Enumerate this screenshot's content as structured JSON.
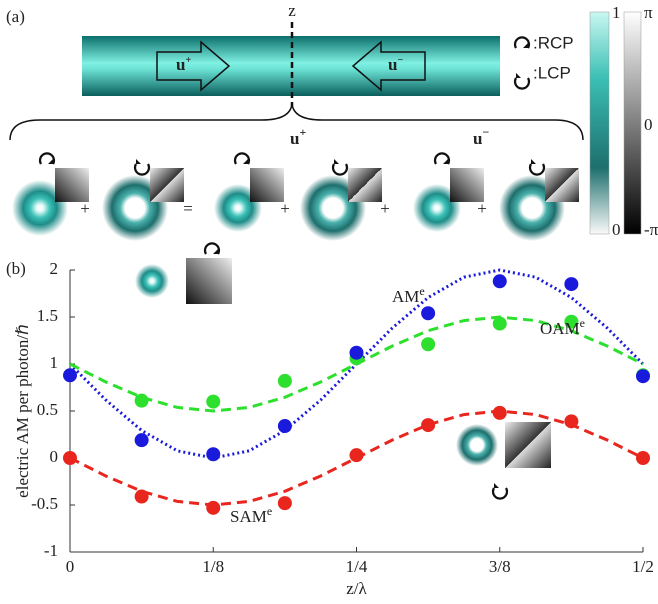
{
  "diagram": {
    "label": "(a)",
    "axis": "z",
    "arrows": [
      {
        "text": "u",
        "sup": "+"
      },
      {
        "text": "u",
        "sup": "−"
      }
    ],
    "legend": [
      ":RCP",
      ":LCP"
    ],
    "brace_labels": [
      {
        "text": "u",
        "sup": "+"
      },
      {
        "text": "u",
        "sup": "−"
      }
    ],
    "operators": [
      "+",
      "=",
      "+",
      "+",
      "+"
    ],
    "colorbars": [
      {
        "ticks": [
          "1",
          "0"
        ]
      },
      {
        "ticks": [
          "π",
          "0",
          "-π"
        ]
      }
    ]
  },
  "chart_data": {
    "type": "line",
    "label": "(b)",
    "xlabel": "z/λ",
    "ylabel": "electric AM per photon/ℏ",
    "xlim": [
      0,
      0.5
    ],
    "ylim": [
      -1,
      2
    ],
    "xticks": [
      0,
      {
        "value": 0.125,
        "label": "1/8"
      },
      {
        "value": 0.25,
        "label": "1/4"
      },
      {
        "value": 0.375,
        "label": "3/8"
      },
      {
        "value": 0.5,
        "label": "1/2"
      }
    ],
    "yticks": [
      -1,
      -0.5,
      0,
      0.5,
      1,
      1.5,
      2
    ],
    "series": [
      {
        "type": "line",
        "style": "dotted",
        "color": "#1a1adc",
        "x": [
          0,
          0.03125,
          0.0625,
          0.09375,
          0.125,
          0.15625,
          0.1875,
          0.21875,
          0.25,
          0.28125,
          0.3125,
          0.34375,
          0.375,
          0.40625,
          0.4375,
          0.46875,
          0.5
        ],
        "values": [
          1,
          0.617,
          0.293,
          0.076,
          0,
          0.076,
          0.293,
          0.617,
          1,
          1.383,
          1.707,
          1.924,
          2,
          1.924,
          1.707,
          1.383,
          1
        ]
      },
      {
        "type": "line",
        "style": "dashed",
        "color": "#2ee02e",
        "x": [
          0,
          0.03125,
          0.0625,
          0.09375,
          0.125,
          0.15625,
          0.1875,
          0.21875,
          0.25,
          0.28125,
          0.3125,
          0.34375,
          0.375,
          0.40625,
          0.4375,
          0.46875,
          0.5
        ],
        "values": [
          1,
          0.809,
          0.646,
          0.538,
          0.5,
          0.538,
          0.646,
          0.809,
          1,
          1.191,
          1.354,
          1.462,
          1.5,
          1.462,
          1.354,
          1.191,
          1
        ]
      },
      {
        "type": "line",
        "style": "dashed",
        "color": "#e8261e",
        "x": [
          0,
          0.03125,
          0.0625,
          0.09375,
          0.125,
          0.15625,
          0.1875,
          0.21875,
          0.25,
          0.28125,
          0.3125,
          0.34375,
          0.375,
          0.40625,
          0.4375,
          0.46875,
          0.5
        ],
        "values": [
          0,
          -0.191,
          -0.354,
          -0.462,
          -0.5,
          -0.462,
          -0.354,
          -0.191,
          0,
          0.191,
          0.354,
          0.462,
          0.5,
          0.462,
          0.354,
          0.191,
          0
        ]
      },
      {
        "type": "scatter",
        "color": "#2ee02e",
        "x": [
          0.0625,
          0.125,
          0.1875,
          0.25,
          0.3125,
          0.375,
          0.4375,
          0.5
        ],
        "values": [
          0.61,
          0.6,
          0.82,
          1.06,
          1.21,
          1.43,
          1.45,
          0.88
        ]
      },
      {
        "type": "scatter",
        "color": "#1a1adc",
        "x": [
          0,
          0.0625,
          0.125,
          0.1875,
          0.25,
          0.3125,
          0.375,
          0.4375,
          0.5
        ],
        "values": [
          0.88,
          0.19,
          0.04,
          0.34,
          1.12,
          1.54,
          1.88,
          1.85,
          0.87
        ]
      },
      {
        "type": "scatter",
        "color": "#e8261e",
        "x": [
          0,
          0.0625,
          0.125,
          0.1875,
          0.25,
          0.3125,
          0.375,
          0.4375,
          0.5
        ],
        "values": [
          0,
          -0.41,
          -0.53,
          -0.48,
          0.03,
          0.35,
          0.48,
          0.39,
          0
        ]
      }
    ],
    "annotations": [
      {
        "text": "AM",
        "sup": "e"
      },
      {
        "text": "OAM",
        "sup": "e"
      },
      {
        "text": "SAM",
        "sup": "e"
      }
    ]
  }
}
